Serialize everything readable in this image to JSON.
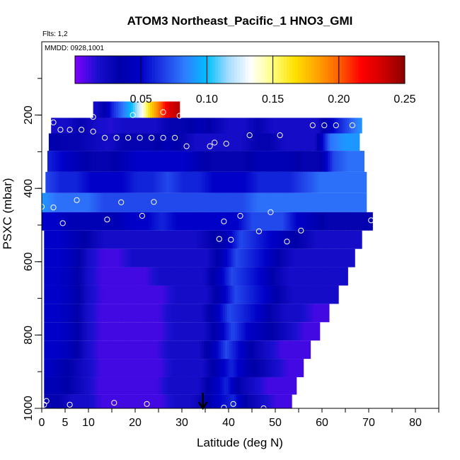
{
  "chart_data": {
    "type": "heatmap",
    "title": "ATOM3 Northeast_Pacific_1 HNO3_GMI",
    "flights_label": "Flts: 1,2",
    "date_label": "MMDD: 0928,1001",
    "xlabel": "Latitude (deg N)",
    "ylabel": "PSXC (mbar)",
    "xlim": [
      0,
      85
    ],
    "ylim": [
      1000,
      0
    ],
    "xticks": [
      0,
      5,
      10,
      20,
      30,
      40,
      50,
      60,
      70,
      80
    ],
    "yticks": [
      200,
      400,
      600,
      800,
      1000
    ],
    "colorbar": {
      "min": 0.0,
      "max": 0.25,
      "ticks": [
        0.05,
        0.1,
        0.15,
        0.2,
        0.25
      ],
      "tick_labels": [
        "0.05",
        "0.10",
        "0.15",
        "0.20",
        "0.25"
      ],
      "colors": [
        "#7f00ff",
        "#1a0fd0",
        "#0000a8",
        "#0000c8",
        "#1e3ce6",
        "#2f7dff",
        "#00bfff",
        "#a8ddff",
        "#ffffff",
        "#ffff80",
        "#ffe000",
        "#ffa500",
        "#ff6000",
        "#ff0000",
        "#d00000",
        "#8b0000"
      ]
    },
    "pressure_levels": [
      {
        "p": 185,
        "lat_start": 11,
        "lat_end": 29.5,
        "values": [
          0.02,
          0.03,
          0.06,
          0.08,
          0.1,
          0.13,
          0.17,
          0.2,
          0.23,
          0.24
        ]
      },
      {
        "p": 230,
        "lat_start": 2,
        "lat_end": 68.5,
        "values": [
          0.02,
          0.02,
          0.03,
          0.02,
          0.015,
          0.02,
          0.02,
          0.02,
          0.03,
          0.03,
          0.04,
          0.03,
          0.02,
          0.02,
          0.03,
          0.02,
          0.02,
          0.02,
          0.02,
          0.05,
          0.07,
          0.09
        ]
      },
      {
        "p": 270,
        "lat_start": 1.5,
        "lat_end": 68,
        "values": [
          0.04,
          0.03,
          0.03,
          0.025,
          0.02,
          0.03,
          0.03,
          0.03,
          0.04,
          0.03,
          0.02,
          0.02,
          0.02,
          0.02,
          0.03,
          0.03,
          0.02,
          0.02,
          0.02,
          0.08,
          0.09,
          0.09
        ]
      },
      {
        "p": 325,
        "lat_start": 1.2,
        "lat_end": 69,
        "values": [
          0.06,
          0.05,
          0.04,
          0.03,
          0.03,
          0.04,
          0.05,
          0.05,
          0.05,
          0.05,
          0.04,
          0.03,
          0.03,
          0.03,
          0.04,
          0.04,
          0.04,
          0.03,
          0.03,
          0.07,
          0.08,
          0.08
        ]
      },
      {
        "p": 385,
        "lat_start": 0.8,
        "lat_end": 69.5,
        "values": [
          0.07,
          0.06,
          0.06,
          0.05,
          0.05,
          0.05,
          0.06,
          0.06,
          0.07,
          0.06,
          0.06,
          0.05,
          0.05,
          0.05,
          0.06,
          0.06,
          0.06,
          0.07,
          0.08,
          0.08,
          0.08,
          0.08
        ]
      },
      {
        "p": 440,
        "lat_start": 0,
        "lat_end": 69.5,
        "values": [
          0.09,
          0.08,
          0.08,
          0.08,
          0.07,
          0.07,
          0.07,
          0.07,
          0.07,
          0.07,
          0.07,
          0.07,
          0.07,
          0.07,
          0.08,
          0.08,
          0.08,
          0.08,
          0.08,
          0.08,
          0.08,
          0.08
        ]
      },
      {
        "p": 490,
        "lat_start": 0,
        "lat_end": 70.8,
        "values": [
          0.05,
          0.05,
          0.04,
          0.04,
          0.04,
          0.04,
          0.05,
          0.05,
          0.06,
          0.05,
          0.05,
          0.05,
          0.05,
          0.05,
          0.07,
          0.07,
          0.07,
          0.05,
          0.04,
          0.03,
          0.03,
          0.03,
          0.03
        ]
      },
      {
        "p": 540,
        "lat_start": 0.5,
        "lat_end": 68.5,
        "values": [
          0.05,
          0.05,
          0.04,
          0.03,
          0.02,
          0.02,
          0.02,
          0.02,
          0.02,
          0.02,
          0.02,
          0.03,
          0.04,
          0.07,
          0.06,
          0.05,
          0.04,
          0.03,
          0.02,
          0.02,
          0.02,
          0.02
        ]
      },
      {
        "p": 590,
        "lat_start": 0.5,
        "lat_end": 67,
        "values": [
          0.05,
          0.05,
          0.04,
          0.02,
          0.01,
          0.01,
          0.02,
          0.02,
          0.02,
          0.02,
          0.02,
          0.02,
          0.04,
          0.07,
          0.06,
          0.05,
          0.03,
          0.02,
          0.02,
          0.02,
          0.02,
          0.02
        ]
      },
      {
        "p": 640,
        "lat_start": 0.5,
        "lat_end": 65.5,
        "values": [
          0.05,
          0.05,
          0.04,
          0.02,
          0.01,
          0.01,
          0.01,
          0.01,
          0.02,
          0.02,
          0.02,
          0.02,
          0.04,
          0.07,
          0.06,
          0.05,
          0.03,
          0.02,
          0.02,
          0.02,
          0.02,
          0.02
        ]
      },
      {
        "p": 690,
        "lat_start": 0.5,
        "lat_end": 63.5,
        "values": [
          0.05,
          0.05,
          0.04,
          0.02,
          0.01,
          0.01,
          0.01,
          0.01,
          0.01,
          0.02,
          0.02,
          0.02,
          0.04,
          0.07,
          0.06,
          0.05,
          0.03,
          0.02,
          0.02,
          0.02,
          0.02
        ]
      },
      {
        "p": 740,
        "lat_start": 0.5,
        "lat_end": 61.5,
        "values": [
          0.05,
          0.05,
          0.04,
          0.02,
          0.01,
          0.01,
          0.01,
          0.01,
          0.01,
          0.02,
          0.02,
          0.02,
          0.04,
          0.07,
          0.06,
          0.05,
          0.03,
          0.02,
          0.02,
          0.01,
          0.01
        ]
      },
      {
        "p": 790,
        "lat_start": 0.5,
        "lat_end": 59.5,
        "values": [
          0.05,
          0.05,
          0.04,
          0.02,
          0.01,
          0.01,
          0.01,
          0.01,
          0.01,
          0.02,
          0.02,
          0.02,
          0.04,
          0.07,
          0.05,
          0.04,
          0.03,
          0.02,
          0.01,
          0.01
        ]
      },
      {
        "p": 840,
        "lat_start": 0.5,
        "lat_end": 57.5,
        "values": [
          0.05,
          0.05,
          0.04,
          0.02,
          0.01,
          0.01,
          0.01,
          0.01,
          0.01,
          0.02,
          0.02,
          0.02,
          0.04,
          0.07,
          0.05,
          0.03,
          0.02,
          0.01,
          0.01,
          0.01
        ]
      },
      {
        "p": 890,
        "lat_start": 0.5,
        "lat_end": 56,
        "values": [
          0.05,
          0.04,
          0.03,
          0.02,
          0.01,
          0.01,
          0.01,
          0.01,
          0.01,
          0.02,
          0.02,
          0.02,
          0.04,
          0.06,
          0.04,
          0.03,
          0.02,
          0.01,
          0.01
        ]
      },
      {
        "p": 940,
        "lat_start": 0.5,
        "lat_end": 54.5,
        "values": [
          0.04,
          0.04,
          0.03,
          0.02,
          0.01,
          0.01,
          0.01,
          0.01,
          0.01,
          0.02,
          0.02,
          0.02,
          0.04,
          0.06,
          0.03,
          0.02,
          0.01,
          0.01,
          0.01
        ]
      },
      {
        "p": 985,
        "lat_start": 0.5,
        "lat_end": 53.5,
        "values": [
          0.03,
          0.03,
          0.02,
          0.02,
          0.01,
          0.01,
          0.01,
          0.01,
          0.01,
          0.02,
          0.02,
          0.03,
          0.05,
          0.06,
          0.03,
          0.02,
          0.01,
          0.01
        ]
      }
    ],
    "points": [
      {
        "lat": 11,
        "p": 205
      },
      {
        "lat": 19.5,
        "p": 200
      },
      {
        "lat": 26,
        "p": 192
      },
      {
        "lat": 29.5,
        "p": 202
      },
      {
        "lat": 2.5,
        "p": 220
      },
      {
        "lat": 4,
        "p": 240
      },
      {
        "lat": 6,
        "p": 240
      },
      {
        "lat": 8.5,
        "p": 240
      },
      {
        "lat": 11,
        "p": 245
      },
      {
        "lat": 13.5,
        "p": 262
      },
      {
        "lat": 16,
        "p": 262
      },
      {
        "lat": 18.5,
        "p": 262
      },
      {
        "lat": 21,
        "p": 262
      },
      {
        "lat": 23.5,
        "p": 262
      },
      {
        "lat": 26,
        "p": 262
      },
      {
        "lat": 28.5,
        "p": 262
      },
      {
        "lat": 31,
        "p": 285
      },
      {
        "lat": 36,
        "p": 285
      },
      {
        "lat": 37,
        "p": 275
      },
      {
        "lat": 39.5,
        "p": 278
      },
      {
        "lat": 44.5,
        "p": 255
      },
      {
        "lat": 51,
        "p": 255
      },
      {
        "lat": 58,
        "p": 228
      },
      {
        "lat": 60.5,
        "p": 228
      },
      {
        "lat": 63,
        "p": 228
      },
      {
        "lat": 66.5,
        "p": 228
      },
      {
        "lat": 0,
        "p": 450
      },
      {
        "lat": 2.5,
        "p": 452
      },
      {
        "lat": 7.5,
        "p": 432
      },
      {
        "lat": 17,
        "p": 438
      },
      {
        "lat": 24,
        "p": 437
      },
      {
        "lat": 4.5,
        "p": 495
      },
      {
        "lat": 14,
        "p": 485
      },
      {
        "lat": 21.5,
        "p": 475
      },
      {
        "lat": 39,
        "p": 490
      },
      {
        "lat": 42.5,
        "p": 475
      },
      {
        "lat": 49,
        "p": 465
      },
      {
        "lat": 70.5,
        "p": 487
      },
      {
        "lat": 38,
        "p": 538
      },
      {
        "lat": 40.5,
        "p": 540
      },
      {
        "lat": 46.5,
        "p": 517
      },
      {
        "lat": 52.5,
        "p": 545
      },
      {
        "lat": 55.5,
        "p": 515
      },
      {
        "lat": 1,
        "p": 980
      },
      {
        "lat": 0.5,
        "p": 990
      },
      {
        "lat": 6,
        "p": 990
      },
      {
        "lat": 15.5,
        "p": 985
      },
      {
        "lat": 22.5,
        "p": 988
      },
      {
        "lat": 39,
        "p": 998
      },
      {
        "lat": 41,
        "p": 988
      },
      {
        "lat": 47.5,
        "p": 1000
      }
    ],
    "arrow_lat": 34.5
  }
}
